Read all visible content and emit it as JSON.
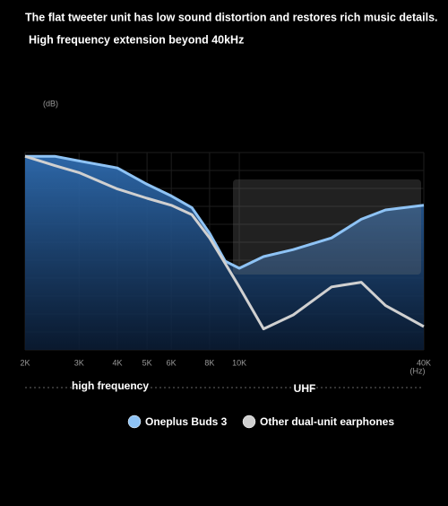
{
  "chart_data": {
    "type": "line",
    "title": "The flat tweeter unit has low sound distortion and restores rich music details.",
    "subtitle": "High frequency extension beyond 40kHz",
    "y_label": "(dB)",
    "x_unit": "(Hz)",
    "log_x": true,
    "x": [
      2000,
      2500,
      3000,
      4000,
      5000,
      6000,
      7000,
      8000,
      9000,
      10000,
      12000,
      15000,
      20000,
      25000,
      30000,
      40000
    ],
    "series": [
      {
        "name": "Oneplus Buds 3",
        "color": "#8ec3f5",
        "values": [
          83,
          83,
          81,
          78,
          71,
          66,
          61,
          50,
          38,
          35,
          40,
          43,
          48,
          56,
          60,
          62
        ]
      },
      {
        "name": "Other dual-unit earphones",
        "color": "#d0d0d0",
        "values": [
          83,
          79,
          76,
          69,
          65,
          62,
          58,
          48,
          37,
          27,
          9,
          15,
          27,
          29,
          19,
          10
        ]
      }
    ],
    "xlim": [
      2000,
      40000
    ],
    "ylim": [
      0,
      100
    ],
    "xticks": [
      {
        "value": 2000,
        "label": "2K"
      },
      {
        "value": 3000,
        "label": "3K"
      },
      {
        "value": 4000,
        "label": "4K"
      },
      {
        "value": 5000,
        "label": "5K"
      },
      {
        "value": 6000,
        "label": "6K"
      },
      {
        "value": 8000,
        "label": "8K"
      },
      {
        "value": 10000,
        "label": "10K"
      },
      {
        "value": 40000,
        "label": "40K"
      }
    ],
    "regions": [
      "high frequency",
      "UHF"
    ],
    "grid": true
  }
}
